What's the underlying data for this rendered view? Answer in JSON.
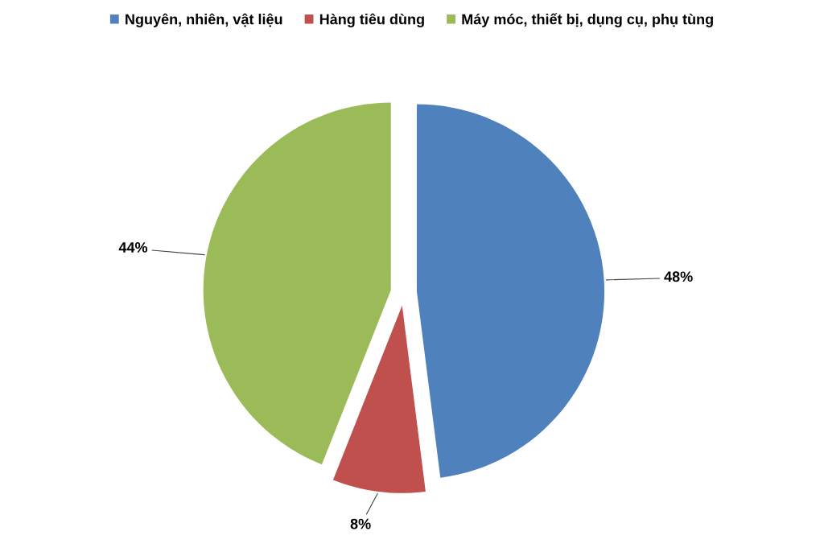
{
  "chart_data": {
    "type": "pie",
    "categories": [
      "Nguyên, nhiên, vật liệu",
      "Hàng tiêu dùng",
      "Máy móc, thiết bị, dụng cụ, phụ tùng"
    ],
    "values": [
      48,
      8,
      44
    ],
    "colors": [
      "#4f81bd",
      "#c0504d",
      "#9bbb59"
    ],
    "value_labels": [
      "48%",
      "8%",
      "44%"
    ],
    "legend": "top"
  }
}
